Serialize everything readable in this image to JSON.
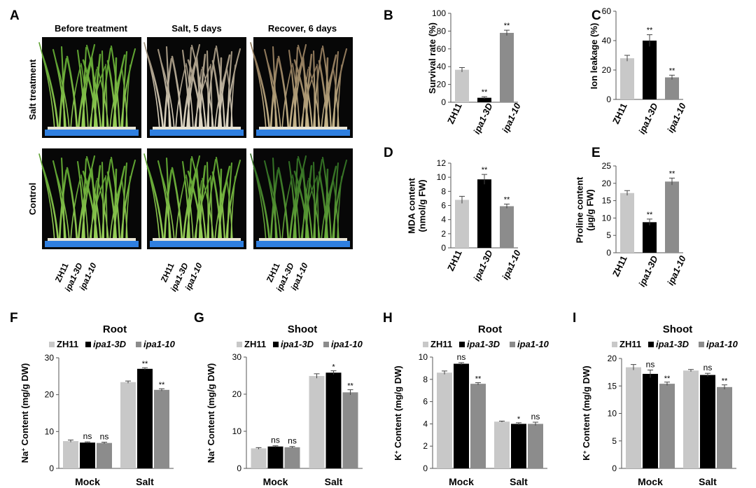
{
  "colors": {
    "zh11": "#c8c8c8",
    "d3": "#000000",
    "ko": "#8c8c8c",
    "axis": "#555555"
  },
  "panel_a": {
    "letter": "A",
    "col_titles": [
      "Before treatment",
      "Salt, 5 days",
      "Recover, 6 days"
    ],
    "row_labels": [
      "Salt treatment",
      "Control"
    ],
    "genotypes": [
      "ZH11",
      "ipa1-3D",
      "ipa1-10"
    ]
  },
  "chart_data": [
    {
      "id": "B",
      "letter": "B",
      "type": "bar",
      "ylabel": [
        "Survival rate (%)"
      ],
      "categories": [
        "ZH11",
        "ipa1-3D",
        "ipa1-10"
      ],
      "values": [
        36.5,
        5,
        78
      ],
      "errors": [
        2.5,
        1.2,
        3
      ],
      "sig": [
        "",
        "**",
        "**"
      ],
      "ylim": [
        0,
        100
      ],
      "ticks": [
        0,
        20,
        40,
        60,
        80,
        100
      ]
    },
    {
      "id": "C",
      "letter": "C",
      "type": "bar",
      "ylabel": [
        "Ion leakage (%)"
      ],
      "categories": [
        "ZH11",
        "ipa1-3D",
        "ipa1-10"
      ],
      "values": [
        28,
        40,
        15
      ],
      "errors": [
        2,
        4,
        1.5
      ],
      "sig": [
        "",
        "**",
        "**"
      ],
      "ylim": [
        0,
        60
      ],
      "ticks": [
        0,
        20,
        40,
        60
      ]
    },
    {
      "id": "D",
      "letter": "D",
      "type": "bar",
      "ylabel": [
        "MDA content",
        "(nmol/g FW)"
      ],
      "categories": [
        "ZH11",
        "ipa1-3D",
        "ipa1-10"
      ],
      "values": [
        6.8,
        9.7,
        5.9
      ],
      "errors": [
        0.5,
        0.7,
        0.3
      ],
      "sig": [
        "",
        "**",
        "**"
      ],
      "ylim": [
        0,
        12
      ],
      "ticks": [
        0,
        2,
        4,
        6,
        8,
        10,
        12
      ]
    },
    {
      "id": "E",
      "letter": "E",
      "type": "bar",
      "ylabel": [
        "Proline content",
        "(µg/g FW)"
      ],
      "categories": [
        "ZH11",
        "ipa1-3D",
        "ipa1-10"
      ],
      "values": [
        17.2,
        8.8,
        20.5
      ],
      "errors": [
        0.7,
        0.9,
        1.0
      ],
      "sig": [
        "",
        "**",
        "**"
      ],
      "ylim": [
        0,
        25
      ],
      "ticks": [
        0,
        5,
        10,
        15,
        20,
        25
      ]
    },
    {
      "id": "F",
      "letter": "F",
      "type": "bar",
      "title": "Root",
      "ion": "Na",
      "ylabel": [
        "Na⁺ Content (mg/g DW)"
      ],
      "legend": [
        "ZH11",
        "ipa1-3D",
        "ipa1-10"
      ],
      "categories": [
        "Mock",
        "Salt"
      ],
      "series": [
        {
          "name": "ZH11",
          "values": [
            7.4,
            23.4
          ],
          "errors": [
            0.3,
            0.3
          ],
          "sig": [
            "",
            ""
          ]
        },
        {
          "name": "ipa1-3D",
          "values": [
            7.0,
            27.0
          ],
          "errors": [
            0.2,
            0.3
          ],
          "sig": [
            "ns",
            "**"
          ]
        },
        {
          "name": "ipa1-10",
          "values": [
            6.9,
            21.3
          ],
          "errors": [
            0.2,
            0.3
          ],
          "sig": [
            "ns",
            "**"
          ]
        }
      ],
      "ylim": [
        0,
        30
      ],
      "ticks": [
        0,
        10,
        20,
        30
      ]
    },
    {
      "id": "G",
      "letter": "G",
      "type": "bar",
      "title": "Shoot",
      "ion": "Na",
      "ylabel": [
        "Na⁺ Content (mg/g DW)"
      ],
      "legend": [
        "ZH11",
        "ipa1-3D",
        "ipa1-10"
      ],
      "categories": [
        "Mock",
        "Salt"
      ],
      "series": [
        {
          "name": "ZH11",
          "values": [
            5.4,
            24.9
          ],
          "errors": [
            0.2,
            0.6
          ],
          "sig": [
            "",
            ""
          ]
        },
        {
          "name": "ipa1-3D",
          "values": [
            5.9,
            25.8
          ],
          "errors": [
            0.2,
            0.5
          ],
          "sig": [
            "ns",
            "*"
          ]
        },
        {
          "name": "ipa1-10",
          "values": [
            5.7,
            20.5
          ],
          "errors": [
            0.2,
            0.7
          ],
          "sig": [
            "ns",
            "**"
          ]
        }
      ],
      "ylim": [
        0,
        30
      ],
      "ticks": [
        0,
        10,
        20,
        30
      ]
    },
    {
      "id": "H",
      "letter": "H",
      "type": "bar",
      "title": "Root",
      "ion": "K",
      "ylabel": [
        "K⁺ Content (mg/g DW)"
      ],
      "legend": [
        "ZH11",
        "ipa1-3D",
        "ipa1-10"
      ],
      "categories": [
        "Mock",
        "Salt"
      ],
      "series": [
        {
          "name": "ZH11",
          "values": [
            8.6,
            4.2
          ],
          "errors": [
            0.15,
            0.05
          ],
          "sig": [
            "",
            ""
          ]
        },
        {
          "name": "ipa1-3D",
          "values": [
            9.4,
            4.0
          ],
          "errors": [
            0.1,
            0.1
          ],
          "sig": [
            "ns",
            "*"
          ]
        },
        {
          "name": "ipa1-10",
          "values": [
            7.6,
            4.0
          ],
          "errors": [
            0.1,
            0.15
          ],
          "sig": [
            "**",
            "ns"
          ]
        }
      ],
      "ylim": [
        0,
        10
      ],
      "ticks": [
        0,
        2,
        4,
        6,
        8,
        10
      ]
    },
    {
      "id": "I",
      "letter": "I",
      "type": "bar",
      "title": "Shoot",
      "ion": "K",
      "ylabel": [
        "K⁺ Content (mg/g DW)"
      ],
      "legend": [
        "ZH11",
        "ipa1-3D",
        "ipa1-10"
      ],
      "categories": [
        "Mock",
        "Salt"
      ],
      "series": [
        {
          "name": "ZH11",
          "values": [
            18.4,
            17.8
          ],
          "errors": [
            0.5,
            0.2
          ],
          "sig": [
            "",
            ""
          ]
        },
        {
          "name": "ipa1-3D",
          "values": [
            17.2,
            17.0
          ],
          "errors": [
            0.7,
            0.3
          ],
          "sig": [
            "ns",
            "ns"
          ]
        },
        {
          "name": "ipa1-10",
          "values": [
            15.4,
            14.8
          ],
          "errors": [
            0.3,
            0.4
          ],
          "sig": [
            "**",
            "**"
          ]
        }
      ],
      "ylim": [
        0,
        20
      ],
      "ticks": [
        0,
        5,
        10,
        15,
        20
      ]
    }
  ]
}
